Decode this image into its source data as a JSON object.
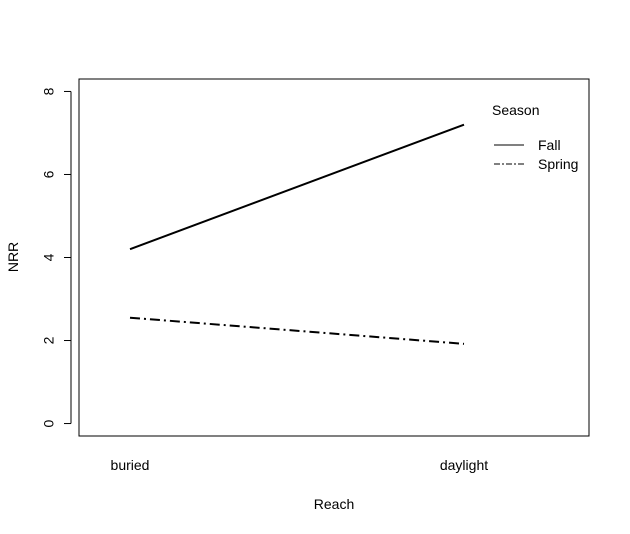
{
  "chart_data": {
    "type": "line",
    "title": "",
    "xlabel": "Reach",
    "ylabel": "NRR",
    "categories": [
      "buried",
      "daylight"
    ],
    "ylim": [
      -0.3,
      8.3
    ],
    "yticks": [
      0,
      2,
      4,
      6,
      8
    ],
    "grid": false,
    "legend": {
      "title": "Season",
      "placement": "top-right"
    },
    "series": [
      {
        "name": "Fall",
        "values": [
          4.2,
          7.2
        ],
        "line_style": "solid"
      },
      {
        "name": "Spring",
        "values": [
          2.55,
          1.92
        ],
        "line_style": "dash-dot"
      }
    ],
    "colors": {
      "line": "#000000",
      "axis": "#000000",
      "background": "#ffffff"
    }
  }
}
